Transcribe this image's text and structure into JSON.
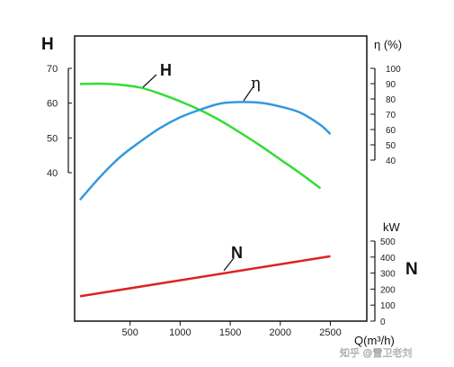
{
  "chart_data": {
    "type": "line",
    "x_ticks": [
      "500",
      "1000",
      "1500",
      "2000",
      "2500"
    ],
    "xlabel": "Q(m³/h)",
    "axes": {
      "H": {
        "label": "H",
        "ticks": [
          "70",
          "60",
          "50",
          "40"
        ]
      },
      "eta": {
        "label": "η (%)",
        "ticks": [
          "100",
          "90",
          "80",
          "70",
          "60",
          "50",
          "40"
        ]
      },
      "N": {
        "label": "N",
        "unit": "kW",
        "ticks": [
          "500",
          "400",
          "300",
          "200",
          "100",
          "0"
        ]
      }
    },
    "series": [
      {
        "name": "H",
        "axis": "H",
        "color": "#33dd33",
        "x": [
          0,
          200,
          400,
          600,
          800,
          1000,
          1200,
          1400,
          1600,
          1800,
          2000,
          2200,
          2400
        ],
        "y": [
          65.5,
          65.6,
          65.3,
          64.5,
          62.7,
          60.5,
          58.0,
          55.0,
          51.5,
          47.8,
          43.8,
          39.8,
          35.5
        ]
      },
      {
        "name": "η",
        "axis": "eta",
        "color": "#3399dd",
        "x": [
          0,
          200,
          400,
          600,
          800,
          1000,
          1200,
          1400,
          1600,
          1800,
          2000,
          2200,
          2400,
          2500
        ],
        "y": [
          14,
          29,
          42,
          52,
          61,
          68,
          73,
          77,
          78,
          77.5,
          75,
          71,
          63,
          57
        ]
      },
      {
        "name": "N",
        "axis": "N",
        "color": "#dd2222",
        "x": [
          0,
          2500
        ],
        "y": [
          155,
          405
        ]
      }
    ]
  },
  "watermark": "知乎 @雷卫老刘"
}
